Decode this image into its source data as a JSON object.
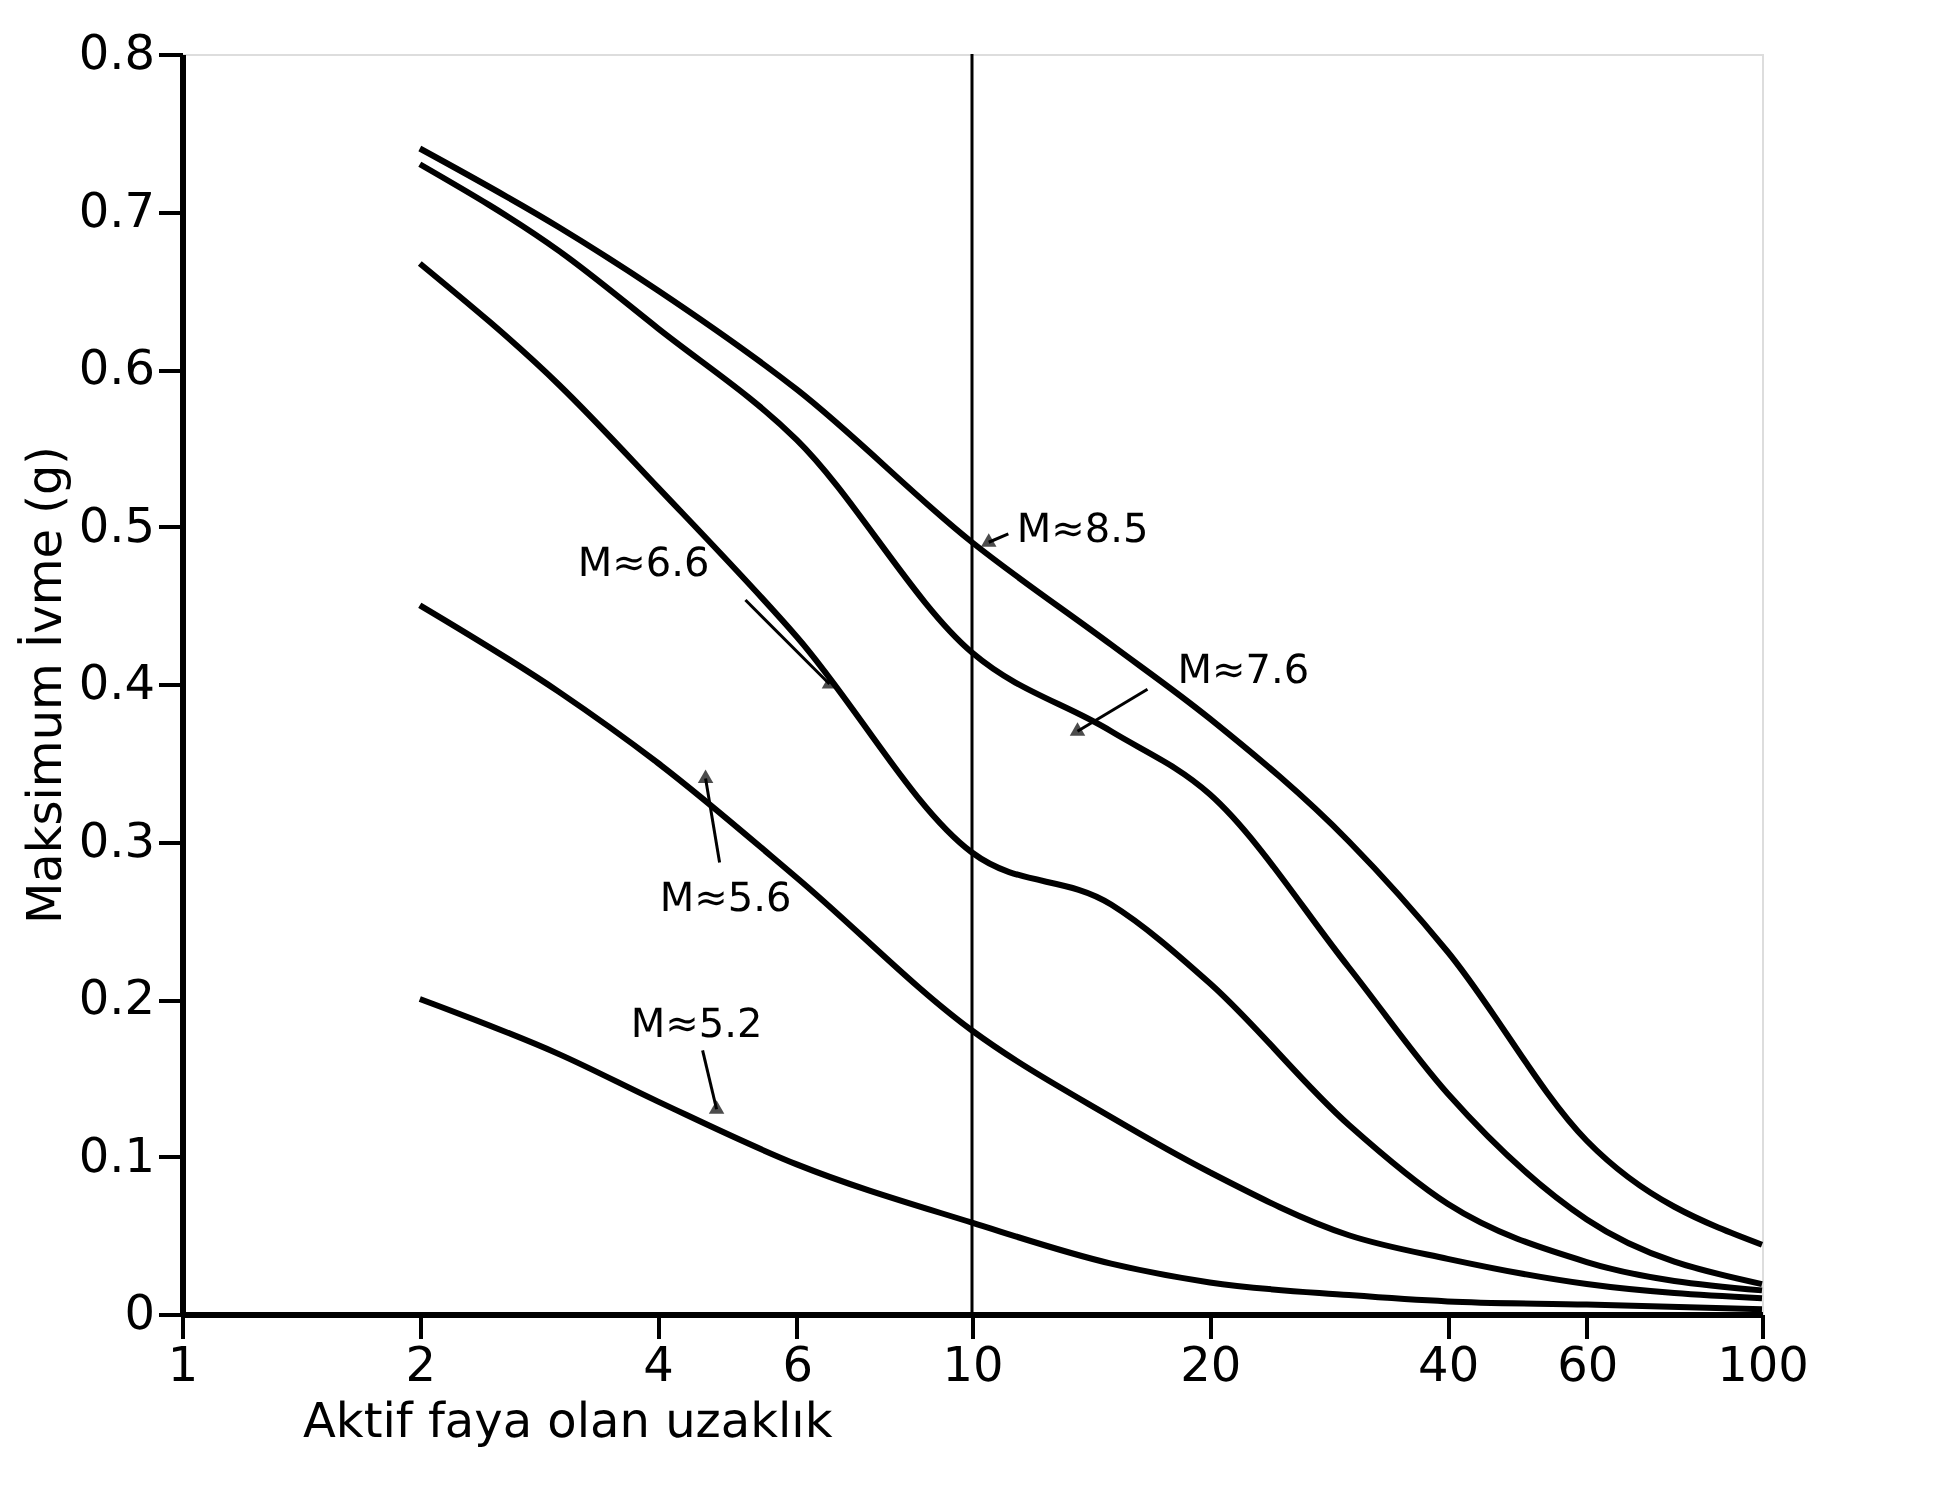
{
  "chart_data": {
    "type": "line",
    "xlabel": "Aktif faya olan uzaklık",
    "ylabel": "Maksimum İvme   (g)",
    "log": "x",
    "xlim": [
      1,
      100
    ],
    "xticks": [
      1,
      2,
      4,
      6,
      10,
      20,
      40,
      60,
      100
    ],
    "ylim": [
      0,
      0.8
    ],
    "yticks": [
      0,
      0.1,
      0.2,
      0.3,
      0.4,
      0.5,
      0.6,
      0.7,
      0.8
    ],
    "grid": false,
    "legend": false,
    "marker": "none",
    "line_style": "solid",
    "x": [
      2,
      3,
      4,
      6,
      10,
      15,
      20,
      30,
      40,
      60,
      100
    ],
    "series": [
      {
        "color": "#000000",
        "values": [
          0.74,
          0.69,
          0.65,
          0.587,
          0.49,
          0.425,
          0.378,
          0.3,
          0.23,
          0.11,
          0.044
        ]
      },
      {
        "color": "#000000",
        "values": [
          0.73,
          0.675,
          0.626,
          0.555,
          0.42,
          0.37,
          0.33,
          0.22,
          0.14,
          0.06,
          0.019
        ]
      },
      {
        "color": "#000000",
        "values": [
          0.667,
          0.59,
          0.525,
          0.43,
          0.293,
          0.26,
          0.21,
          0.12,
          0.07,
          0.033,
          0.015
        ]
      },
      {
        "color": "#000000",
        "values": [
          0.45,
          0.395,
          0.35,
          0.277,
          0.18,
          0.125,
          0.09,
          0.05,
          0.035,
          0.019,
          0.01
        ]
      },
      {
        "color": "#000000",
        "values": [
          0.2,
          0.165,
          0.135,
          0.095,
          0.058,
          0.032,
          0.02,
          0.012,
          0.008,
          0.006,
          0.003
        ]
      }
    ],
    "ref_lines": [
      {
        "axis": "x",
        "value": 10,
        "color": "#000000"
      }
    ],
    "annotations": [
      {
        "text": "M≈8.5",
        "x": 10.5,
        "y": 0.49
      },
      {
        "text": "M≈7.6",
        "x": 13.6,
        "y": 0.37
      },
      {
        "text": "M≈6.6",
        "x": 6.6,
        "y": 0.4
      },
      {
        "text": "M≈5.6",
        "x": 4.6,
        "y": 0.34
      },
      {
        "text": "M≈5.2",
        "x": 4.75,
        "y": 0.13
      }
    ]
  }
}
